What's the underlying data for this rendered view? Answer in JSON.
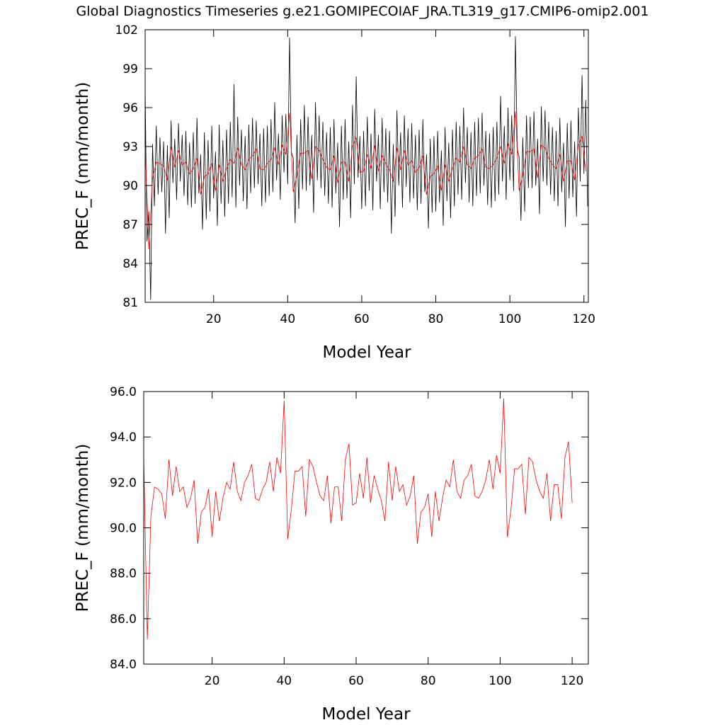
{
  "chart_data": [
    {
      "type": "line",
      "title": "Global Diagnostics Timeseries g.e21.GOMIPECOIAF_JRA.TL319_g17.CMIP6-omip2.001",
      "xlabel": "Model Year",
      "ylabel": "PREC_F (mm/month)",
      "xlim": [
        1.5,
        121.2
      ],
      "xticks": [
        20,
        40,
        60,
        80,
        100,
        120
      ],
      "ylim": [
        81,
        102
      ],
      "yticks": [
        81,
        84,
        87,
        90,
        93,
        96,
        99,
        102
      ],
      "series": [
        {
          "color": "#000000",
          "x": [
            1.5,
            2,
            2.5,
            3,
            3.5,
            4,
            4.5,
            5,
            5.5,
            6,
            6.5,
            7,
            7.5,
            8,
            8.5,
            9,
            9.5,
            10,
            10.5,
            11,
            11.5,
            12,
            12.5,
            13,
            13.5,
            14,
            14.5,
            15,
            15.5,
            16,
            16.5,
            17,
            17.5,
            18,
            18.5,
            19,
            19.5,
            20,
            20.5,
            21,
            21.5,
            22,
            22.5,
            23,
            23.5,
            24,
            24.5,
            25,
            25.5,
            26,
            26.5,
            27,
            27.5,
            28,
            28.5,
            29,
            29.5,
            30,
            30.5,
            31,
            31.5,
            32,
            32.5,
            33,
            33.5,
            34,
            34.5,
            35,
            35.5,
            36,
            36.5,
            37,
            37.5,
            38,
            38.5,
            39,
            39.5,
            40,
            40.5,
            41,
            41.5,
            42,
            42.5,
            43,
            43.5,
            44,
            44.5,
            45,
            45.5,
            46,
            46.5,
            47,
            47.5,
            48,
            48.5,
            49,
            49.5,
            50,
            50.5,
            51,
            51.5,
            52,
            52.5,
            53,
            53.5,
            54,
            54.5,
            55,
            55.5,
            56,
            56.5,
            57,
            57.5,
            58,
            58.5,
            59,
            59.5,
            60,
            60.5,
            61,
            61.5,
            62,
            62.5,
            63,
            63.5,
            64,
            64.5,
            65,
            65.5,
            66,
            66.5,
            67,
            67.5,
            68,
            68.5,
            69,
            69.5,
            70,
            70.5,
            71,
            71.5,
            72,
            72.5,
            73,
            73.5,
            74,
            74.5,
            75,
            75.5,
            76,
            76.5,
            77,
            77.5,
            78,
            78.5,
            79,
            79.5,
            80,
            80.5,
            81,
            81.5,
            82,
            82.5,
            83,
            83.5,
            84,
            84.5,
            85,
            85.5,
            86,
            86.5,
            87,
            87.5,
            88,
            88.5,
            89,
            89.5,
            90,
            90.5,
            91,
            91.5,
            92,
            92.5,
            93,
            93.5,
            94,
            94.5,
            95,
            95.5,
            96,
            96.5,
            97,
            97.5,
            98,
            98.5,
            99,
            99.5,
            100,
            100.5,
            101,
            101.5,
            102,
            102.5,
            103,
            103.5,
            104,
            104.5,
            105,
            105.5,
            106,
            106.5,
            107,
            107.5,
            108,
            108.5,
            109,
            109.5,
            110,
            110.5,
            111,
            111.5,
            112,
            112.5,
            113,
            113.5,
            114,
            114.5,
            115,
            115.5,
            116,
            116.5,
            117,
            117.5,
            118,
            118.5,
            119,
            119.5,
            120,
            120.5,
            121
          ],
          "values": [
            97.5,
            85.7,
            88.0,
            81.2,
            93.2,
            88.4,
            94.6,
            89.3,
            93.7,
            89.5,
            93.4,
            86.3,
            93.1,
            87.5,
            95.0,
            90.2,
            93.6,
            88.9,
            94.8,
            90.3,
            93.9,
            89.2,
            94.2,
            88.5,
            93.3,
            88.3,
            94.1,
            88.6,
            95.2,
            89.4,
            92.4,
            86.6,
            94.1,
            87.4,
            93.5,
            88.0,
            94.6,
            89.0,
            92.6,
            86.9,
            94.7,
            88.6,
            93.5,
            87.6,
            94.3,
            88.6,
            94.9,
            89.1,
            97.8,
            88.3,
            95.3,
            90.0,
            94.3,
            88.8,
            93.8,
            88.2,
            94.7,
            89.4,
            95.2,
            89.8,
            95.0,
            90.1,
            94.0,
            88.4,
            94.4,
            88.7,
            94.6,
            89.2,
            95.1,
            89.5,
            96.4,
            90.4,
            94.0,
            88.9,
            95.4,
            91.0,
            95.5,
            90.1,
            101.4,
            92.6,
            92.1,
            87.1,
            93.9,
            88.2,
            95.1,
            89.7,
            96.2,
            89.6,
            95.3,
            90.0,
            93.9,
            87.9,
            96.4,
            90.4,
            95.4,
            89.8,
            94.9,
            89.2,
            94.1,
            88.6,
            94.5,
            88.3,
            95.1,
            89.4,
            93.3,
            86.8,
            94.6,
            88.9,
            95.1,
            89.0,
            93.4,
            87.5,
            96.2,
            90.1,
            98.4,
            90.6,
            93.8,
            88.2,
            94.2,
            88.4,
            95.3,
            89.6,
            94.0,
            88.1,
            95.9,
            90.3,
            93.9,
            88.2,
            95.2,
            89.5,
            94.4,
            88.7,
            94.2,
            86.3,
            93.2,
            87.6,
            95.8,
            90.0,
            94.1,
            88.3,
            95.4,
            89.9,
            94.4,
            88.7,
            94.8,
            89.0,
            93.9,
            88.1,
            94.3,
            88.6,
            95.1,
            89.5,
            92.4,
            86.7,
            93.6,
            87.9,
            93.8,
            88.0,
            94.2,
            88.7,
            92.7,
            86.9,
            94.5,
            88.8,
            93.3,
            87.5,
            94.3,
            88.4,
            94.9,
            89.3,
            94.6,
            88.9,
            96.0,
            90.2,
            94.5,
            88.7,
            94.1,
            88.4,
            94.9,
            89.2,
            95.2,
            89.4,
            95.6,
            90.0,
            94.2,
            88.5,
            94.0,
            88.3,
            94.5,
            88.8,
            94.9,
            89.3,
            96.9,
            90.3,
            94.6,
            88.9,
            96.0,
            90.4,
            95.4,
            89.6,
            101.5,
            92.8,
            92.2,
            87.3,
            93.7,
            88.0,
            95.4,
            89.8,
            95.3,
            89.8,
            95.7,
            90.0,
            93.6,
            87.8,
            96.1,
            90.3,
            95.8,
            90.0,
            94.9,
            89.3,
            94.5,
            88.8,
            94.2,
            88.4,
            95.2,
            89.5,
            93.3,
            86.8,
            94.8,
            89.0,
            95.0,
            89.1,
            93.4,
            87.6,
            96.0,
            90.3,
            98.5,
            90.9,
            96.6,
            88.4
          ]
        },
        {
          "color": "#ff0000",
          "x": [
            1.5,
            2.5,
            3.5,
            4.5,
            5.5,
            6.5,
            7.5,
            8.5,
            9.5,
            10.5,
            11.5,
            12.5,
            13.5,
            14.5,
            15.5,
            16.5,
            17.5,
            18.5,
            19.5,
            20.5,
            21.5,
            22.5,
            23.5,
            24.5,
            25.5,
            26.5,
            27.5,
            28.5,
            29.5,
            30.5,
            31.5,
            32.5,
            33.5,
            34.5,
            35.5,
            36.5,
            37.5,
            38.5,
            39.5,
            40.5,
            41.5,
            42.5,
            43.5,
            44.5,
            45.5,
            46.5,
            47.5,
            48.5,
            49.5,
            50.5,
            51.5,
            52.5,
            53.5,
            54.5,
            55.5,
            56.5,
            57.5,
            58.5,
            59.5,
            60.5,
            61.5,
            62.5,
            63.5,
            64.5,
            65.5,
            66.5,
            67.5,
            68.5,
            69.5,
            70.5,
            71.5,
            72.5,
            73.5,
            74.5,
            75.5,
            76.5,
            77.5,
            78.5,
            79.5,
            80.5,
            81.5,
            82.5,
            83.5,
            84.5,
            85.5,
            86.5,
            87.5,
            88.5,
            89.5,
            90.5,
            91.5,
            92.5,
            93.5,
            94.5,
            95.5,
            96.5,
            97.5,
            98.5,
            99.5,
            100.5,
            101.5,
            102.5,
            103.5,
            104.5,
            105.5,
            106.5,
            107.5,
            108.5,
            109.5,
            110.5,
            111.5,
            112.5,
            113.5,
            114.5,
            115.5,
            116.5,
            117.5,
            118.5,
            119.5,
            120.5
          ],
          "values": [
            93.1,
            85.1,
            90.5,
            91.8,
            91.7,
            91.5,
            90.4,
            93.0,
            91.4,
            92.7,
            91.6,
            91.8,
            90.9,
            91.3,
            92.1,
            89.3,
            90.7,
            90.9,
            91.7,
            89.6,
            91.6,
            90.3,
            91.3,
            92.0,
            91.7,
            92.9,
            91.6,
            91.2,
            92.0,
            92.3,
            92.8,
            91.3,
            91.2,
            91.7,
            92.0,
            92.9,
            91.6,
            93.1,
            92.4,
            95.6,
            89.5,
            90.8,
            92.5,
            92.5,
            92.7,
            90.5,
            93.0,
            92.7,
            92.0,
            91.4,
            91.2,
            92.3,
            90.2,
            91.8,
            91.8,
            90.3,
            93.0,
            93.7,
            91.0,
            91.1,
            92.4,
            91.3,
            93.1,
            91.1,
            92.3,
            91.7,
            91.2,
            90.3,
            92.9,
            91.2,
            92.7,
            91.6,
            91.9,
            91.0,
            91.4,
            92.3,
            89.3,
            90.7,
            90.9,
            91.5,
            89.6,
            91.6,
            90.3,
            91.3,
            92.1,
            91.8,
            93.0,
            91.6,
            91.3,
            92.1,
            92.3,
            92.8,
            91.4,
            91.3,
            91.6,
            92.1,
            93.0,
            91.7,
            93.2,
            92.4,
            95.7,
            89.6,
            90.8,
            92.6,
            92.6,
            92.8,
            90.6,
            93.1,
            92.9,
            92.1,
            91.6,
            91.3,
            92.4,
            90.3,
            91.9,
            91.9,
            90.4,
            93.1,
            93.8,
            91.1
          ]
        }
      ]
    },
    {
      "type": "line",
      "xlabel": "Model Year",
      "ylabel": "PREC_F (mm/month)",
      "xlim": [
        1,
        124.5
      ],
      "xticks": [
        20,
        40,
        60,
        80,
        100,
        120
      ],
      "ylim": [
        84,
        96
      ],
      "yticks": [
        {
          "value": 84,
          "label": "84.0"
        },
        {
          "value": 86,
          "label": "86.0"
        },
        {
          "value": 88,
          "label": "88.0"
        },
        {
          "value": 90,
          "label": "90.0"
        },
        {
          "value": 92,
          "label": "92.0"
        },
        {
          "value": 94,
          "label": "94.0"
        },
        {
          "value": 96,
          "label": "96.0"
        }
      ],
      "series": [
        {
          "color": "#ff0000",
          "x": [
            1,
            2,
            3,
            4,
            5,
            6,
            7,
            8,
            9,
            10,
            11,
            12,
            13,
            14,
            15,
            16,
            17,
            18,
            19,
            20,
            21,
            22,
            23,
            24,
            25,
            26,
            27,
            28,
            29,
            30,
            31,
            32,
            33,
            34,
            35,
            36,
            37,
            38,
            39,
            40,
            41,
            42,
            43,
            44,
            45,
            46,
            47,
            48,
            49,
            50,
            51,
            52,
            53,
            54,
            55,
            56,
            57,
            58,
            59,
            60,
            61,
            62,
            63,
            64,
            65,
            66,
            67,
            68,
            69,
            70,
            71,
            72,
            73,
            74,
            75,
            76,
            77,
            78,
            79,
            80,
            81,
            82,
            83,
            84,
            85,
            86,
            87,
            88,
            89,
            90,
            91,
            92,
            93,
            94,
            95,
            96,
            97,
            98,
            99,
            100,
            101,
            102,
            103,
            104,
            105,
            106,
            107,
            108,
            109,
            110,
            111,
            112,
            113,
            114,
            115,
            116,
            117,
            118,
            119,
            120
          ],
          "values": [
            93.1,
            85.1,
            90.5,
            91.8,
            91.7,
            91.5,
            90.4,
            93.0,
            91.4,
            92.7,
            91.6,
            91.8,
            90.9,
            91.3,
            92.1,
            89.3,
            90.7,
            90.9,
            91.7,
            89.6,
            91.6,
            90.3,
            91.3,
            92.0,
            91.7,
            92.9,
            91.6,
            91.2,
            92.0,
            92.3,
            92.8,
            91.3,
            91.2,
            91.7,
            92.0,
            92.9,
            91.6,
            93.1,
            92.4,
            95.6,
            89.5,
            90.8,
            92.5,
            92.5,
            92.7,
            90.5,
            93.0,
            92.7,
            92.0,
            91.4,
            91.2,
            92.3,
            90.2,
            91.8,
            91.8,
            90.3,
            93.0,
            93.7,
            91.0,
            91.1,
            92.4,
            91.3,
            93.1,
            91.1,
            92.3,
            91.7,
            91.2,
            90.3,
            92.9,
            91.2,
            92.7,
            91.6,
            91.9,
            91.0,
            91.4,
            92.3,
            89.3,
            90.7,
            90.9,
            91.5,
            89.6,
            91.6,
            90.3,
            91.3,
            92.1,
            91.8,
            93.0,
            91.6,
            91.3,
            92.1,
            92.3,
            92.8,
            91.4,
            91.3,
            91.6,
            92.1,
            93.0,
            91.7,
            93.2,
            92.4,
            95.7,
            89.6,
            90.8,
            92.6,
            92.6,
            92.8,
            90.6,
            93.1,
            92.9,
            92.1,
            91.6,
            91.3,
            92.4,
            90.3,
            91.9,
            91.9,
            90.4,
            93.1,
            93.8,
            91.1
          ]
        }
      ]
    }
  ]
}
